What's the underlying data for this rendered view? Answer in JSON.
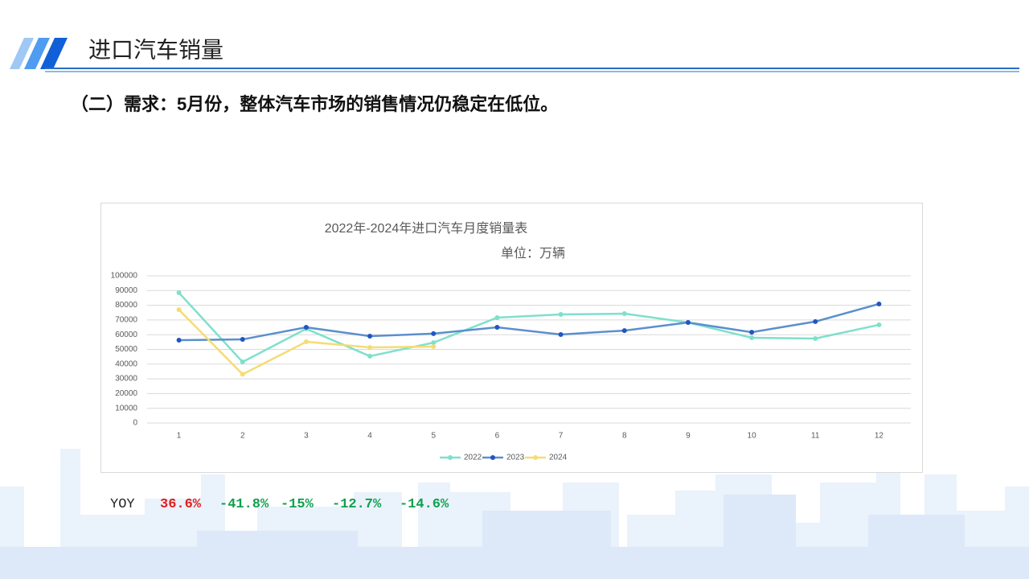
{
  "header": {
    "title": "进口汽车销量"
  },
  "subtitle": "（二）需求：5月份，整体汽车市场的销售情况仍稳定在低位。",
  "chart_data": {
    "type": "line",
    "title": "2022年-2024年进口汽车月度销量表",
    "subtitle": "单位：万辆",
    "categories": [
      1,
      2,
      3,
      4,
      5,
      6,
      7,
      8,
      9,
      10,
      11,
      12
    ],
    "series": [
      {
        "name": "2022",
        "color": "#7fe0cc",
        "values": [
          88500,
          41500,
          64000,
          45400,
          54600,
          71600,
          73800,
          74300,
          68300,
          57900,
          57400,
          66700
        ]
      },
      {
        "name": "2023",
        "color": "#5b8fcc",
        "values": [
          56300,
          56800,
          65000,
          59000,
          60700,
          65000,
          60100,
          62800,
          68300,
          61700,
          68900,
          80900
        ]
      },
      {
        "name": "2024",
        "color": "#f5dc74",
        "values": [
          77000,
          33100,
          55200,
          51400,
          51900,
          null,
          null,
          null,
          null,
          null,
          null,
          null
        ]
      }
    ],
    "ylim": [
      0,
      100000
    ],
    "yticks": [
      0,
      10000,
      20000,
      30000,
      40000,
      50000,
      60000,
      70000,
      80000,
      90000,
      100000
    ],
    "grid": true,
    "legend": "bottom"
  },
  "yoy": {
    "label": "YOY",
    "items": [
      "36.6%",
      "-41.8%",
      "-15%",
      "-12.7%",
      "-14.6%"
    ],
    "colors": [
      "#e02020",
      "#10a050",
      "#10a050",
      "#10a050",
      "#10a050"
    ]
  }
}
